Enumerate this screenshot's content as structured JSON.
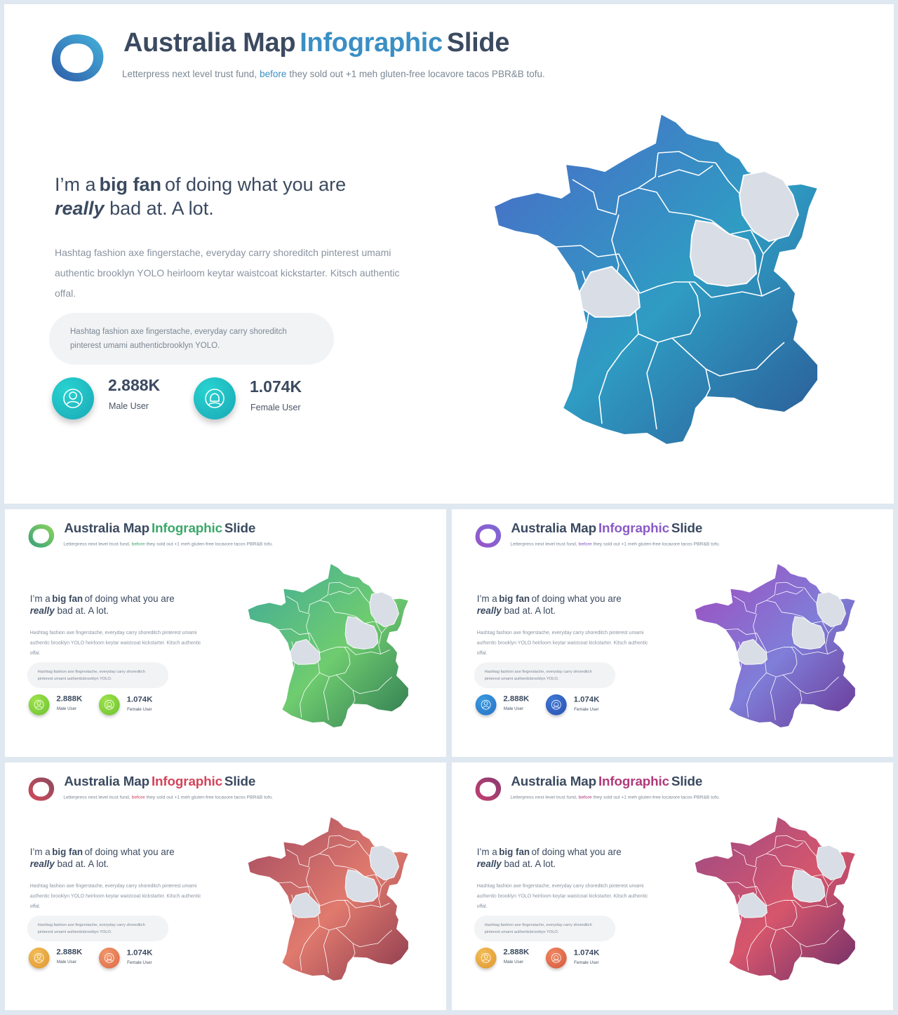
{
  "slide": {
    "title_start": "Australia Map",
    "title_accent": "Infographic",
    "title_end": "Slide",
    "subtitle_start": "Letterpress next level trust fund,",
    "subtitle_highlight": "before",
    "subtitle_end": "they sold out +1 meh gluten-free locavore tacos PBR&B tofu.",
    "heading_part1": "I’m a",
    "heading_bold": "big fan",
    "heading_part2": "of doing what you are",
    "heading_italic": "really",
    "heading_part3": "bad at. A lot.",
    "body_text": "Hashtag fashion axe fingerstache, everyday carry shoreditch pinterest umami authentic brooklyn YOLO heirloom keytar waistcoat kickstarter. Kitsch authentic offal.",
    "quote_text": "Hashtag fashion axe fingerstache, everyday carry shoreditch pinterest umami authenticbrooklyn YOLO.",
    "male_value": "2.888K",
    "male_label": "Male User",
    "female_value": "1.074K",
    "female_label": "Female User",
    "map_regions": 13,
    "map_highlighted_regions": 3
  },
  "themes": [
    {
      "name": "blue",
      "accent": "#3a8fc4",
      "map_from": "#4c68c8",
      "map_to": "#2f9cc3",
      "map_end": "#2b5a96",
      "icon_male": [
        "#28d3d0",
        "#1aa8b6"
      ],
      "icon_female": [
        "#28d3d0",
        "#1aa8b6"
      ],
      "logo_from": "#2d5ca8",
      "logo_to": "#46b2db"
    },
    {
      "name": "green",
      "accent": "#3ca86a",
      "map_from": "#3faa9a",
      "map_to": "#6fcc6f",
      "map_end": "#2f7a52",
      "icon_male": [
        "#9ee24a",
        "#6cc231"
      ],
      "icon_female": [
        "#9ee24a",
        "#6cc231"
      ],
      "logo_from": "#35a07c",
      "logo_to": "#8fd45a"
    },
    {
      "name": "purple",
      "accent": "#8a5bc8",
      "map_from": "#a04cc0",
      "map_to": "#7f7ed8",
      "map_end": "#6a3896",
      "icon_male": [
        "#3a9be0",
        "#2670c4"
      ],
      "icon_female": [
        "#3e78d6",
        "#2a50b0"
      ],
      "logo_from": "#9a54c8",
      "logo_to": "#7a6ad6"
    },
    {
      "name": "red",
      "accent": "#d2455a",
      "map_from": "#a24a60",
      "map_to": "#e07a6e",
      "map_end": "#8c3a4e",
      "icon_male": [
        "#f2bd58",
        "#e0962e"
      ],
      "icon_female": [
        "#f2966a",
        "#dd6a48"
      ],
      "logo_from": "#d24a5a",
      "logo_to": "#8a4a5e"
    },
    {
      "name": "magenta",
      "accent": "#b03a7a",
      "map_from": "#9a4a86",
      "map_to": "#d6566c",
      "map_end": "#6e2f6a",
      "icon_male": [
        "#f2bd58",
        "#e0962e"
      ],
      "icon_female": [
        "#f08660",
        "#d45a3e"
      ],
      "logo_from": "#c44070",
      "logo_to": "#8a3a70"
    }
  ]
}
